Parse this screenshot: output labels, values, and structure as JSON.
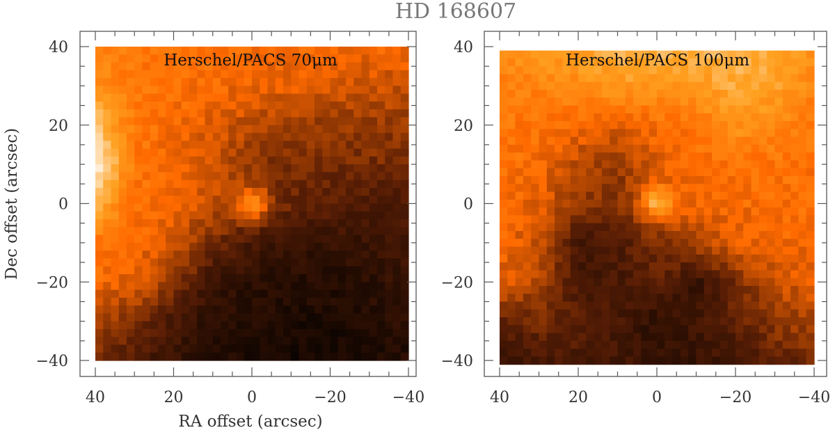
{
  "figure_title": "HD 168607",
  "chart_data": [
    {
      "type": "heatmap",
      "title": "Herschel/PACS 70μm",
      "xlabel": "RA offset (arcsec)",
      "ylabel": "Dec offset (arcsec)",
      "xlim": [
        42,
        -42
      ],
      "ylim": [
        -44,
        44
      ],
      "image_extent": {
        "x": [
          40,
          -40
        ],
        "y": [
          -40,
          40
        ]
      },
      "xticks": [
        "40",
        "20",
        "0",
        "−20",
        "−40"
      ],
      "yticks": [
        "40",
        "20",
        "0",
        "−20",
        "−40"
      ],
      "xtick_values": [
        40,
        20,
        0,
        -20,
        -40
      ],
      "ytick_values": [
        40,
        20,
        0,
        -20,
        -40
      ],
      "colormap": [
        "#000000",
        "#5a1e05",
        "#ff6a00",
        "#ffa020",
        "#ffffff"
      ],
      "point_source": {
        "x": 0,
        "y": 0,
        "relative_intensity": 0.35
      },
      "coarse_intensity_grid_note": "rows y=40..-40 step 10, cols x=40..-40 step 10, normalized 0-1",
      "intensity_grid": [
        [
          0.62,
          0.6,
          0.58,
          0.57,
          0.56,
          0.55,
          0.54,
          0.54,
          0.53
        ],
        [
          0.7,
          0.6,
          0.57,
          0.55,
          0.52,
          0.5,
          0.48,
          0.47,
          0.45
        ],
        [
          0.85,
          0.6,
          0.55,
          0.5,
          0.42,
          0.38,
          0.36,
          0.36,
          0.35
        ],
        [
          0.98,
          0.6,
          0.53,
          0.45,
          0.35,
          0.3,
          0.3,
          0.3,
          0.3
        ],
        [
          0.8,
          0.58,
          0.52,
          0.45,
          0.35,
          0.28,
          0.25,
          0.22,
          0.22
        ],
        [
          0.6,
          0.55,
          0.48,
          0.3,
          0.2,
          0.15,
          0.15,
          0.15,
          0.18
        ],
        [
          0.55,
          0.5,
          0.35,
          0.15,
          0.12,
          0.1,
          0.1,
          0.12,
          0.15
        ],
        [
          0.4,
          0.3,
          0.2,
          0.12,
          0.1,
          0.08,
          0.08,
          0.1,
          0.12
        ],
        [
          0.3,
          0.22,
          0.15,
          0.1,
          0.08,
          0.06,
          0.06,
          0.08,
          0.1
        ]
      ]
    },
    {
      "type": "heatmap",
      "title": "Herschel/PACS 100μm",
      "xlabel": "",
      "ylabel": "",
      "xlim": [
        42,
        -42
      ],
      "ylim": [
        -44,
        44
      ],
      "image_extent": {
        "x": [
          40,
          -40
        ],
        "y": [
          -40,
          39
        ]
      },
      "xticks": [
        "40",
        "20",
        "0",
        "−20",
        "−40"
      ],
      "yticks": [
        "40",
        "20",
        "0",
        "−20",
        "−40"
      ],
      "xtick_values": [
        40,
        20,
        0,
        -20,
        -40
      ],
      "ytick_values": [
        40,
        20,
        0,
        -20,
        -40
      ],
      "colormap": [
        "#000000",
        "#5a1e05",
        "#ff6a00",
        "#ffa020",
        "#ffffff"
      ],
      "point_source": {
        "x": 0,
        "y": 0,
        "relative_intensity": 0.3
      },
      "coarse_intensity_grid_note": "rows y=40..-40 step 10, cols x=40..-40 step 10, normalized 0-1",
      "intensity_grid": [
        [
          0.7,
          0.72,
          0.75,
          0.8,
          0.82,
          0.8,
          0.82,
          0.78,
          0.7
        ],
        [
          0.62,
          0.65,
          0.68,
          0.72,
          0.72,
          0.72,
          0.78,
          0.75,
          0.65
        ],
        [
          0.6,
          0.58,
          0.55,
          0.5,
          0.55,
          0.6,
          0.7,
          0.66,
          0.6
        ],
        [
          0.58,
          0.55,
          0.42,
          0.35,
          0.5,
          0.55,
          0.58,
          0.58,
          0.58
        ],
        [
          0.56,
          0.5,
          0.35,
          0.32,
          0.5,
          0.52,
          0.55,
          0.56,
          0.56
        ],
        [
          0.55,
          0.45,
          0.18,
          0.22,
          0.3,
          0.4,
          0.5,
          0.53,
          0.55
        ],
        [
          0.5,
          0.4,
          0.2,
          0.2,
          0.25,
          0.15,
          0.3,
          0.45,
          0.5
        ],
        [
          0.25,
          0.3,
          0.25,
          0.2,
          0.12,
          0.18,
          0.25,
          0.35,
          0.4
        ],
        [
          0.15,
          0.2,
          0.2,
          0.18,
          0.15,
          0.15,
          0.2,
          0.25,
          0.3
        ]
      ]
    }
  ]
}
